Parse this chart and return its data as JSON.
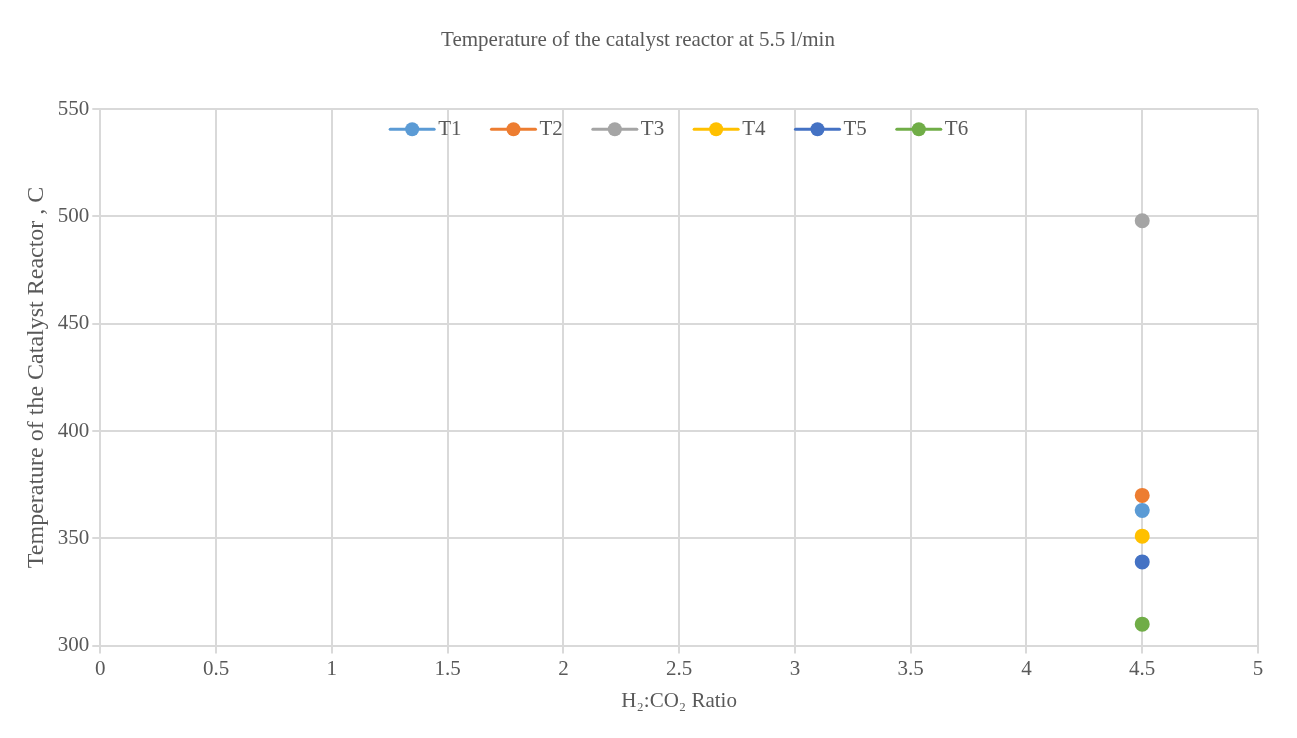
{
  "chart_data": {
    "type": "line",
    "title": "Temperature of the catalyst reactor at 5.5 l/min",
    "xlabel": "H₂:CO₂ Ratio",
    "ylabel": "Temperature of the Catalyst Reactor , C",
    "x": [
      4.5
    ],
    "series": [
      {
        "name": "T1",
        "color": "#5b9bd5",
        "values": [
          363
        ]
      },
      {
        "name": "T2",
        "color": "#ed7d31",
        "values": [
          370
        ]
      },
      {
        "name": "T3",
        "color": "#a5a5a5",
        "values": [
          498
        ]
      },
      {
        "name": "T4",
        "color": "#ffc000",
        "values": [
          351
        ]
      },
      {
        "name": "T5",
        "color": "#4472c4",
        "values": [
          339
        ]
      },
      {
        "name": "T6",
        "color": "#70ad47",
        "values": [
          310
        ]
      }
    ],
    "xlim": [
      0,
      5
    ],
    "xticks": [
      0,
      0.5,
      1,
      1.5,
      2,
      2.5,
      3,
      3.5,
      4,
      4.5,
      5
    ],
    "ylim": [
      300,
      550
    ],
    "yticks": [
      300,
      350,
      400,
      450,
      500,
      550
    ],
    "grid": true,
    "legend": "top",
    "marker": "circle",
    "line_style": "solid"
  }
}
